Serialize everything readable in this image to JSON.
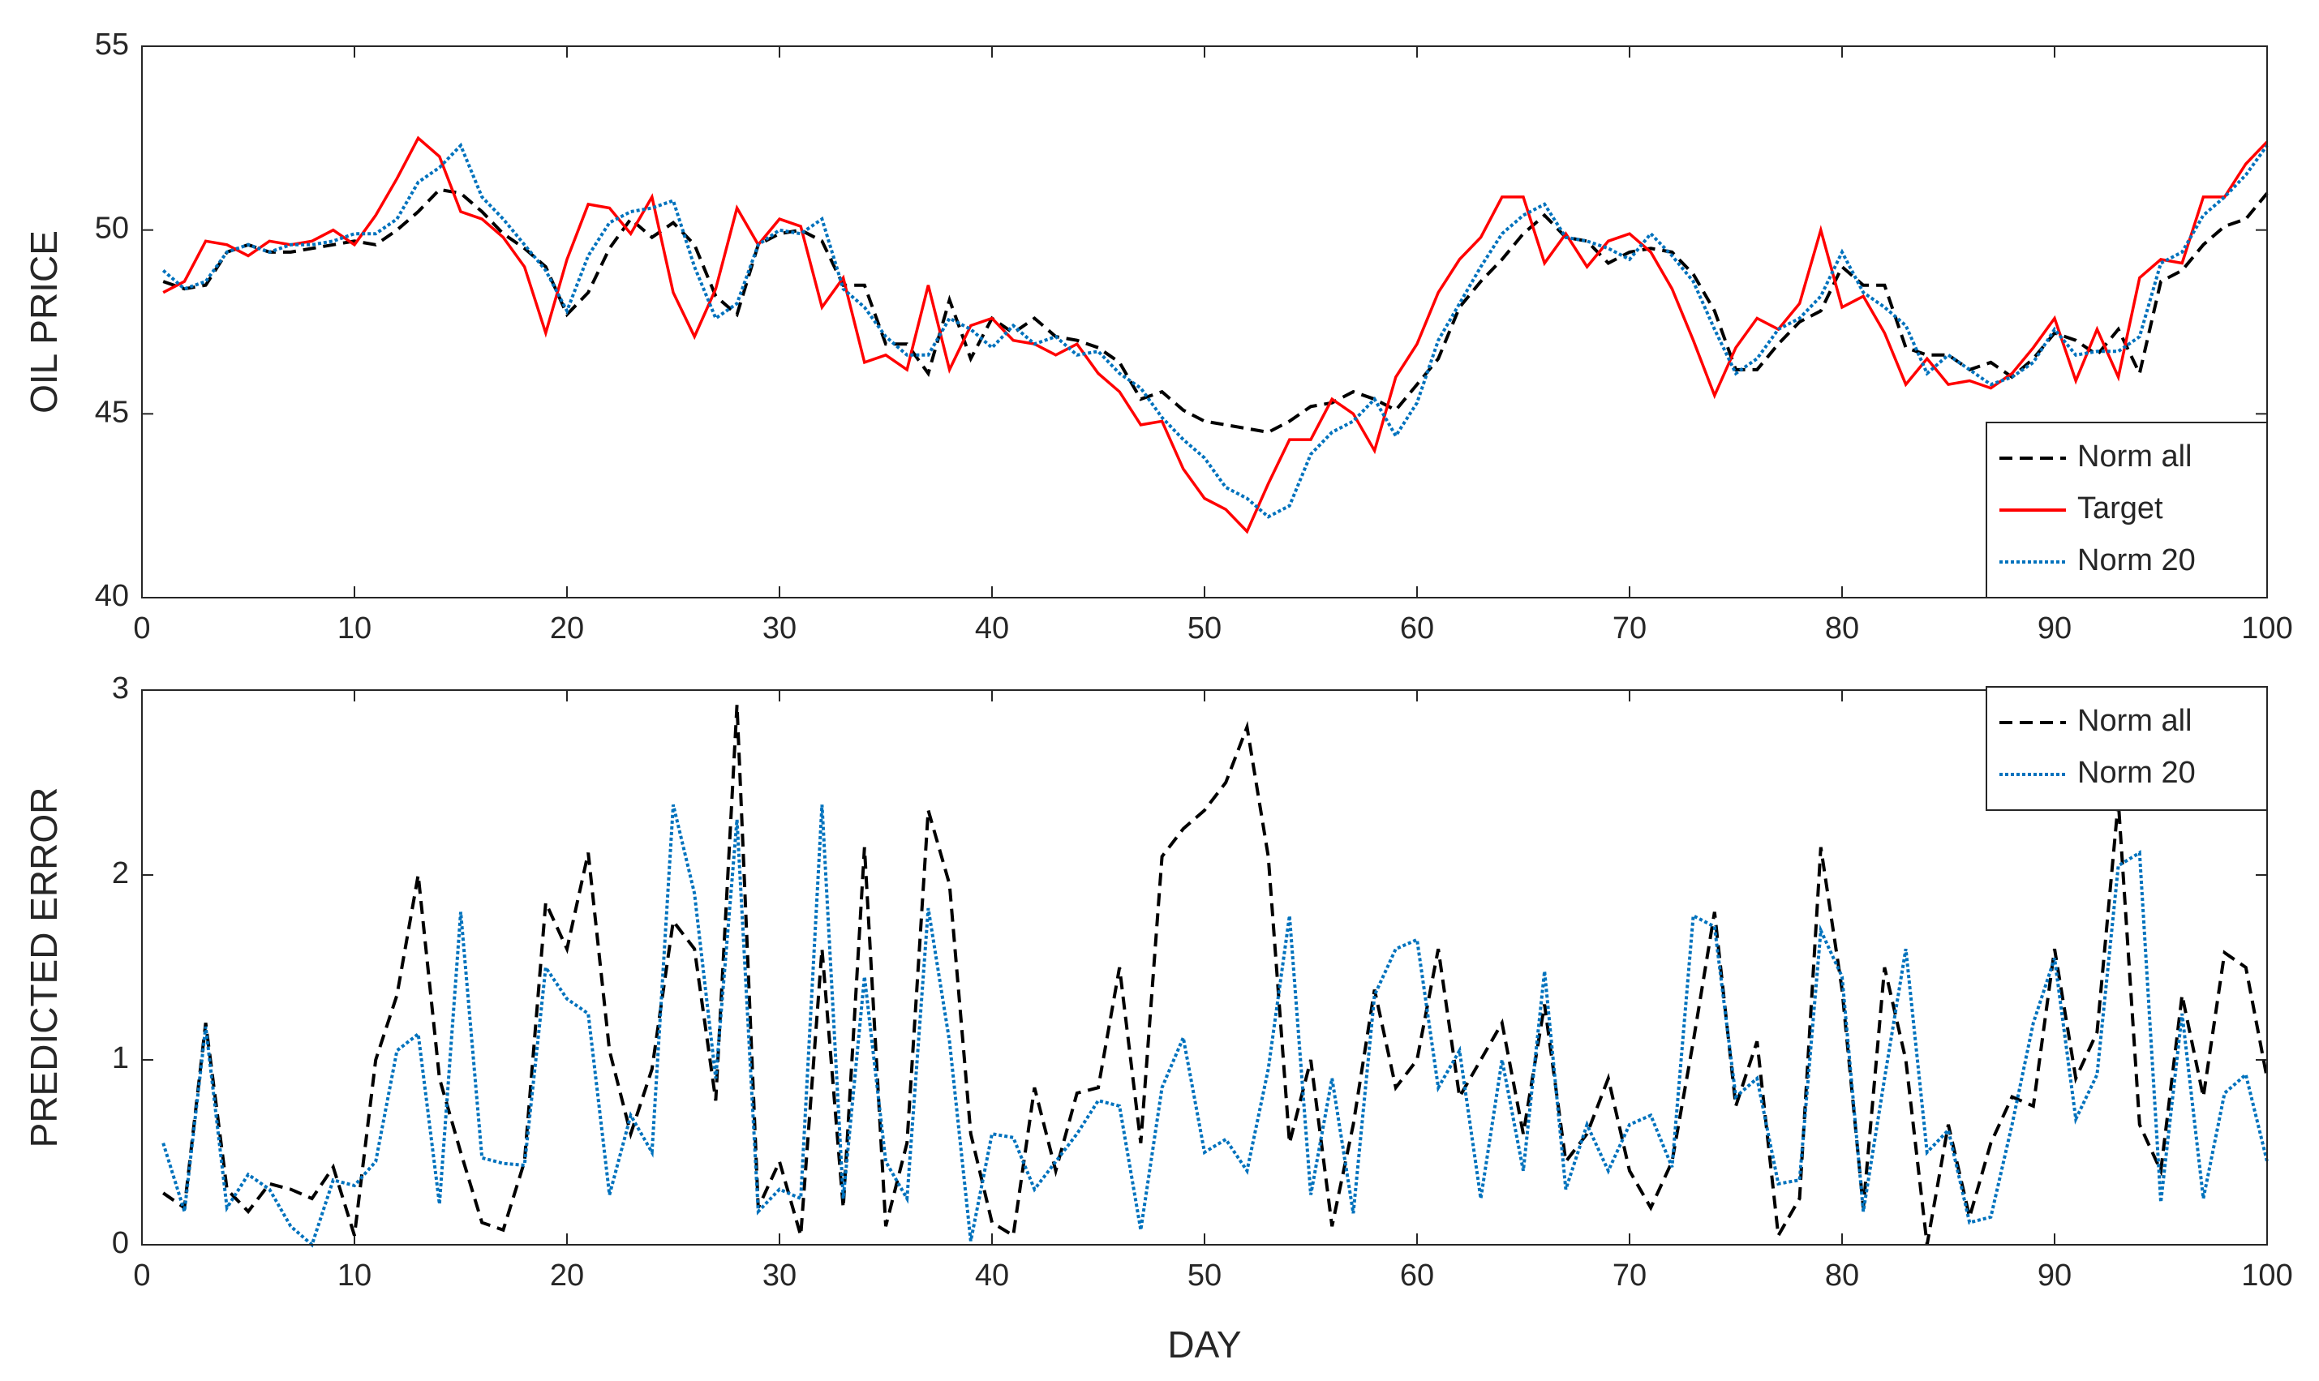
{
  "chart_data": [
    {
      "type": "line",
      "ylabel": "OIL PRICE",
      "x": [
        1,
        2,
        3,
        4,
        5,
        6,
        7,
        8,
        9,
        10,
        11,
        12,
        13,
        14,
        15,
        16,
        17,
        18,
        19,
        20,
        21,
        22,
        23,
        24,
        25,
        26,
        27,
        28,
        29,
        30,
        31,
        32,
        33,
        34,
        35,
        36,
        37,
        38,
        39,
        40,
        41,
        42,
        43,
        44,
        45,
        46,
        47,
        48,
        49,
        50,
        51,
        52,
        53,
        54,
        55,
        56,
        57,
        58,
        59,
        60,
        61,
        62,
        63,
        64,
        65,
        66,
        67,
        68,
        69,
        70,
        71,
        72,
        73,
        74,
        75,
        76,
        77,
        78,
        79,
        80,
        81,
        82,
        83,
        84,
        85,
        86,
        87,
        88,
        89,
        90,
        91,
        92,
        93,
        94,
        95,
        96,
        97,
        98,
        99,
        100
      ],
      "series": [
        {
          "name": "Norm all",
          "color": "#000000",
          "linestyle": "dashed",
          "values": [
            48.6,
            48.4,
            48.5,
            49.4,
            49.6,
            49.4,
            49.4,
            49.5,
            49.6,
            49.7,
            49.6,
            50.0,
            50.5,
            51.1,
            51.0,
            50.5,
            49.9,
            49.5,
            49.0,
            47.7,
            48.3,
            49.5,
            50.3,
            49.8,
            50.2,
            49.6,
            48.2,
            47.7,
            49.6,
            49.9,
            50.0,
            49.7,
            48.5,
            48.5,
            46.9,
            46.9,
            46.1,
            48.1,
            46.5,
            47.6,
            47.2,
            47.6,
            47.1,
            47.0,
            46.8,
            46.4,
            45.4,
            45.6,
            45.1,
            44.8,
            44.7,
            44.6,
            44.5,
            44.8,
            45.2,
            45.3,
            45.6,
            45.4,
            45.1,
            45.8,
            46.5,
            47.9,
            48.6,
            49.2,
            49.9,
            50.4,
            49.8,
            49.7,
            49.1,
            49.4,
            49.5,
            49.4,
            48.8,
            47.8,
            46.2,
            46.2,
            46.9,
            47.5,
            47.8,
            49.0,
            48.5,
            48.5,
            46.8,
            46.6,
            46.6,
            46.2,
            46.4,
            46.0,
            46.5,
            47.2,
            47.0,
            46.6,
            47.3,
            46.1,
            48.6,
            48.9,
            49.6,
            50.1,
            50.3,
            51.0
          ]
        },
        {
          "name": "Target",
          "color": "#ff0000",
          "linestyle": "solid",
          "values": [
            48.3,
            48.6,
            49.7,
            49.6,
            49.3,
            49.7,
            49.6,
            49.7,
            50.0,
            49.6,
            50.4,
            51.4,
            52.5,
            52.0,
            50.5,
            50.3,
            49.8,
            49.0,
            47.2,
            49.2,
            50.7,
            50.6,
            49.9,
            50.9,
            48.3,
            47.1,
            48.4,
            50.6,
            49.6,
            50.3,
            50.1,
            47.9,
            48.7,
            46.4,
            46.6,
            46.2,
            48.5,
            46.2,
            47.4,
            47.6,
            47.0,
            46.9,
            46.6,
            46.9,
            46.1,
            45.6,
            44.7,
            44.8,
            43.5,
            42.7,
            42.4,
            41.8,
            43.1,
            44.3,
            44.3,
            45.4,
            45.0,
            44.0,
            46.0,
            46.9,
            48.3,
            49.2,
            49.8,
            50.9,
            50.9,
            49.1,
            49.9,
            49.0,
            49.7,
            49.9,
            49.4,
            48.4,
            47.0,
            45.5,
            46.8,
            47.6,
            47.3,
            48.0,
            50.0,
            47.9,
            48.2,
            47.2,
            45.8,
            46.5,
            45.8,
            45.9,
            45.7,
            46.1,
            46.8,
            47.6,
            45.9,
            47.3,
            46.0,
            48.7,
            49.2,
            49.1,
            50.9,
            50.9,
            51.8,
            52.4
          ]
        },
        {
          "name": "Norm 20",
          "color": "#0072bd",
          "linestyle": "dotted",
          "values": [
            48.9,
            48.4,
            48.6,
            49.4,
            49.6,
            49.4,
            49.6,
            49.6,
            49.7,
            49.9,
            49.9,
            50.3,
            51.3,
            51.7,
            52.3,
            50.9,
            50.3,
            49.6,
            48.9,
            47.8,
            49.3,
            50.2,
            50.5,
            50.6,
            50.8,
            49.0,
            47.6,
            48.0,
            49.6,
            50.0,
            49.9,
            50.3,
            48.4,
            47.9,
            47.1,
            46.6,
            46.6,
            47.6,
            47.3,
            46.8,
            47.4,
            46.9,
            47.1,
            46.6,
            46.7,
            46.1,
            45.7,
            44.9,
            44.3,
            43.8,
            43.0,
            42.7,
            42.2,
            42.5,
            43.9,
            44.5,
            44.8,
            45.4,
            44.4,
            45.3,
            47.0,
            48.0,
            49.0,
            49.9,
            50.4,
            50.7,
            49.8,
            49.7,
            49.5,
            49.2,
            49.9,
            49.3,
            48.6,
            47.3,
            46.1,
            46.5,
            47.3,
            47.6,
            48.2,
            49.4,
            48.3,
            47.9,
            47.4,
            46.1,
            46.6,
            46.2,
            45.8,
            46.0,
            46.4,
            47.3,
            46.6,
            46.7,
            46.7,
            47.1,
            49.1,
            49.4,
            50.4,
            50.9,
            51.5,
            52.3
          ]
        }
      ],
      "xlim": [
        0,
        100
      ],
      "xticks": [
        0,
        10,
        20,
        30,
        40,
        50,
        60,
        70,
        80,
        90,
        100
      ],
      "ylim": [
        40,
        55
      ],
      "yticks": [
        40,
        45,
        50,
        55
      ],
      "legend": "lower right"
    },
    {
      "type": "line",
      "ylabel": "PREDICTED ERROR",
      "xlabel": "DAY",
      "x": [
        1,
        2,
        3,
        4,
        5,
        6,
        7,
        8,
        9,
        10,
        11,
        12,
        13,
        14,
        15,
        16,
        17,
        18,
        19,
        20,
        21,
        22,
        23,
        24,
        25,
        26,
        27,
        28,
        29,
        30,
        31,
        32,
        33,
        34,
        35,
        36,
        37,
        38,
        39,
        40,
        41,
        42,
        43,
        44,
        45,
        46,
        47,
        48,
        49,
        50,
        51,
        52,
        53,
        54,
        55,
        56,
        57,
        58,
        59,
        60,
        61,
        62,
        63,
        64,
        65,
        66,
        67,
        68,
        69,
        70,
        71,
        72,
        73,
        74,
        75,
        76,
        77,
        78,
        79,
        80,
        81,
        82,
        83,
        84,
        85,
        86,
        87,
        88,
        89,
        90,
        91,
        92,
        93,
        94,
        95,
        96,
        97,
        98,
        99,
        100
      ],
      "series": [
        {
          "name": "Norm all",
          "color": "#000000",
          "linestyle": "dashed",
          "values": [
            0.28,
            0.2,
            1.2,
            0.3,
            0.18,
            0.33,
            0.3,
            0.25,
            0.42,
            0.05,
            1.0,
            1.35,
            2.0,
            0.9,
            0.5,
            0.12,
            0.08,
            0.45,
            1.85,
            1.6,
            2.12,
            1.05,
            0.6,
            0.95,
            1.75,
            1.6,
            0.78,
            2.92,
            0.2,
            0.45,
            0.05,
            1.6,
            0.2,
            2.15,
            0.1,
            0.55,
            2.35,
            1.95,
            0.6,
            0.12,
            0.05,
            0.85,
            0.4,
            0.82,
            0.85,
            1.5,
            0.55,
            2.1,
            2.25,
            2.35,
            2.5,
            2.8,
            2.1,
            0.55,
            1.0,
            0.1,
            0.65,
            1.38,
            0.85,
            1.0,
            1.6,
            0.8,
            1.0,
            1.2,
            0.6,
            1.3,
            0.45,
            0.6,
            0.9,
            0.4,
            0.2,
            0.45,
            1.1,
            1.8,
            0.75,
            1.1,
            0.05,
            0.25,
            2.15,
            1.38,
            0.2,
            1.5,
            1.0,
            0.0,
            0.65,
            0.15,
            0.55,
            0.8,
            0.75,
            1.6,
            0.9,
            1.15,
            2.4,
            0.65,
            0.4,
            1.35,
            0.8,
            1.58,
            1.5,
            0.9
          ]
        },
        {
          "name": "Norm 20",
          "color": "#0072bd",
          "linestyle": "dotted",
          "values": [
            0.55,
            0.18,
            1.18,
            0.2,
            0.38,
            0.3,
            0.1,
            0.0,
            0.35,
            0.32,
            0.45,
            1.05,
            1.14,
            0.22,
            1.8,
            0.47,
            0.44,
            0.43,
            1.5,
            1.33,
            1.25,
            0.27,
            0.7,
            0.5,
            2.38,
            1.9,
            0.9,
            2.3,
            0.18,
            0.3,
            0.25,
            2.38,
            0.25,
            1.45,
            0.45,
            0.25,
            1.82,
            1.1,
            0.02,
            0.6,
            0.58,
            0.3,
            0.45,
            0.6,
            0.78,
            0.75,
            0.08,
            0.85,
            1.12,
            0.5,
            0.57,
            0.4,
            0.95,
            1.78,
            0.27,
            0.9,
            0.17,
            1.35,
            1.6,
            1.65,
            0.85,
            1.05,
            0.25,
            1.0,
            0.4,
            1.48,
            0.3,
            0.65,
            0.4,
            0.65,
            0.7,
            0.42,
            1.78,
            1.72,
            0.8,
            0.9,
            0.33,
            0.35,
            1.7,
            1.45,
            0.18,
            0.9,
            1.6,
            0.5,
            0.62,
            0.12,
            0.15,
            0.65,
            1.2,
            1.55,
            0.68,
            0.92,
            2.05,
            2.12,
            0.23,
            1.25,
            0.25,
            0.82,
            0.92,
            0.45
          ]
        }
      ],
      "xlim": [
        0,
        100
      ],
      "xticks": [
        0,
        10,
        20,
        30,
        40,
        50,
        60,
        70,
        80,
        90,
        100
      ],
      "ylim": [
        0,
        3
      ],
      "yticks": [
        0,
        1,
        2,
        3
      ],
      "legend": "upper right"
    }
  ]
}
